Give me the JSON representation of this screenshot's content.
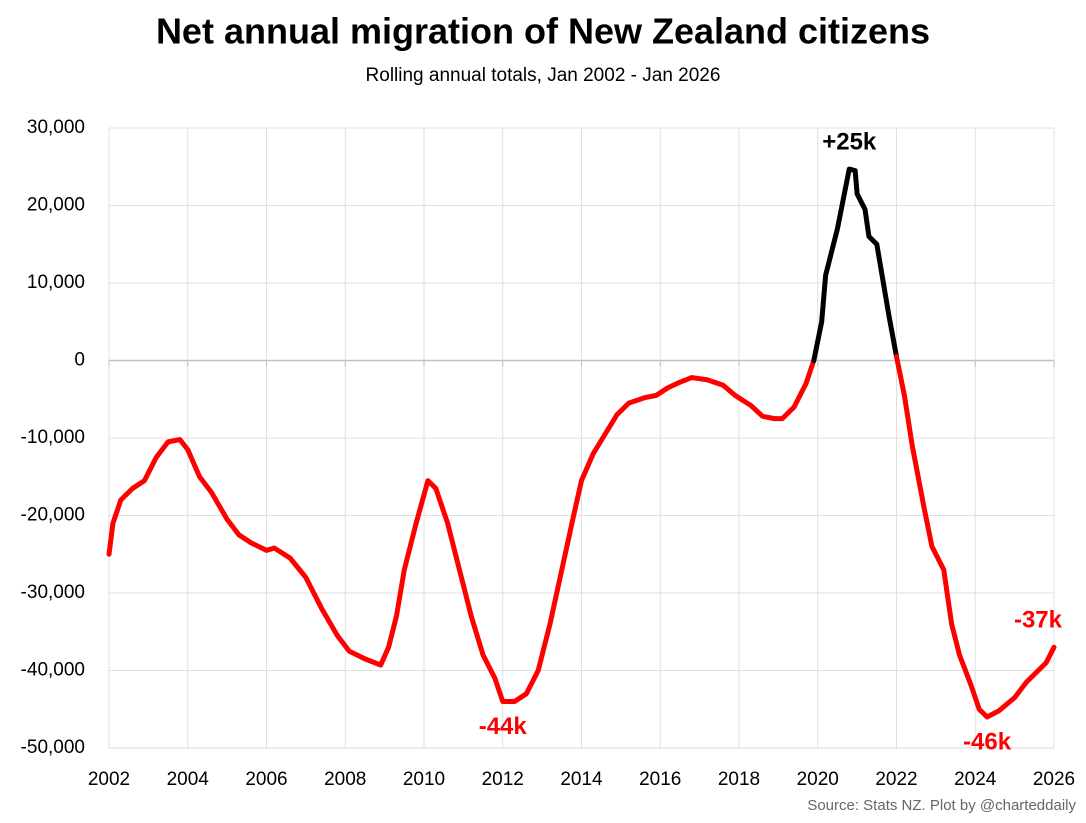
{
  "chart_data": {
    "type": "line",
    "title": "Net annual migration of New Zealand citizens",
    "subtitle": "Rolling annual totals, Jan 2002 - Jan 2026",
    "source": "Source: Stats NZ.  Plot by @charteddaily",
    "x": [
      2002.0,
      2002.1,
      2002.3,
      2002.6,
      2002.9,
      2003.2,
      2003.5,
      2003.8,
      2004.0,
      2004.3,
      2004.6,
      2005.0,
      2005.3,
      2005.6,
      2006.0,
      2006.2,
      2006.6,
      2007.0,
      2007.4,
      2007.8,
      2008.1,
      2008.5,
      2008.9,
      2009.1,
      2009.3,
      2009.5,
      2009.8,
      2010.1,
      2010.3,
      2010.6,
      2010.9,
      2011.2,
      2011.5,
      2011.8,
      2012.0,
      2012.3,
      2012.6,
      2012.9,
      2013.2,
      2013.5,
      2013.8,
      2014.0,
      2014.3,
      2014.6,
      2014.9,
      2015.2,
      2015.6,
      2015.9,
      2016.2,
      2016.5,
      2016.8,
      2017.2,
      2017.6,
      2017.9,
      2018.3,
      2018.6,
      2018.9,
      2019.1,
      2019.4,
      2019.7,
      2019.9,
      2020.1,
      2020.2,
      2020.5,
      2020.8,
      2020.95,
      2021.0,
      2021.2,
      2021.3,
      2021.5,
      2021.7,
      2021.8,
      2022.0,
      2022.2,
      2022.4,
      2022.7,
      2022.9,
      2023.2,
      2023.4,
      2023.6,
      2023.9,
      2024.1,
      2024.3,
      2024.6,
      2025.0,
      2025.3,
      2025.6,
      2025.8,
      2026.0
    ],
    "series": [
      {
        "color": "#ff0000",
        "positive_color": "#000000",
        "values": [
          -25000,
          -21000,
          -18000,
          -16500,
          -15500,
          -12500,
          -10500,
          -10200,
          -11500,
          -15000,
          -17000,
          -20500,
          -22500,
          -23500,
          -24500,
          -24200,
          -25500,
          -28000,
          -32000,
          -35500,
          -37500,
          -38500,
          -39300,
          -37000,
          -33000,
          -27000,
          -21000,
          -15500,
          -16500,
          -21000,
          -27000,
          -33000,
          -38000,
          -41000,
          -44000,
          -44000,
          -43000,
          -40000,
          -34000,
          -27000,
          -20000,
          -15500,
          -12000,
          -9500,
          -7000,
          -5500,
          -4800,
          -4500,
          -3500,
          -2800,
          -2200,
          -2500,
          -3200,
          -4500,
          -5800,
          -7200,
          -7500,
          -7500,
          -6000,
          -3000,
          0,
          5000,
          11000,
          17000,
          24700,
          24500,
          21500,
          19500,
          16000,
          15000,
          9000,
          6000,
          500,
          -4500,
          -11000,
          -19000,
          -24000,
          -27000,
          -34000,
          -38000,
          -42000,
          -45000,
          -46000,
          -45200,
          -43500,
          -41500,
          -40000,
          -39000,
          -37000
        ]
      }
    ],
    "annotations": [
      {
        "text": "+25k",
        "x": 2020.8,
        "y": 24700
      },
      {
        "text": "-44k",
        "x": 2012.0,
        "y": -44000
      },
      {
        "text": "-46k",
        "x": 2024.3,
        "y": -46000
      },
      {
        "text": "-37k",
        "x": 2026.0,
        "y": -37000
      }
    ],
    "xlim": [
      2002,
      2026
    ],
    "xticks": [
      2002,
      2004,
      2006,
      2008,
      2010,
      2012,
      2014,
      2016,
      2018,
      2020,
      2022,
      2024,
      2026
    ],
    "ylim": [
      -50000,
      30000
    ],
    "yticks": [
      {
        "value": -50000,
        "label": "-50,000"
      },
      {
        "value": -40000,
        "label": "-40,000"
      },
      {
        "value": -30000,
        "label": "-30,000"
      },
      {
        "value": -20000,
        "label": "-20,000"
      },
      {
        "value": -10000,
        "label": "-10,000"
      },
      0,
      {
        "value": 10000,
        "label": "10,000"
      },
      {
        "value": 20000,
        "label": "20,000"
      },
      {
        "value": 30000,
        "label": "30,000"
      }
    ],
    "grid": true
  }
}
